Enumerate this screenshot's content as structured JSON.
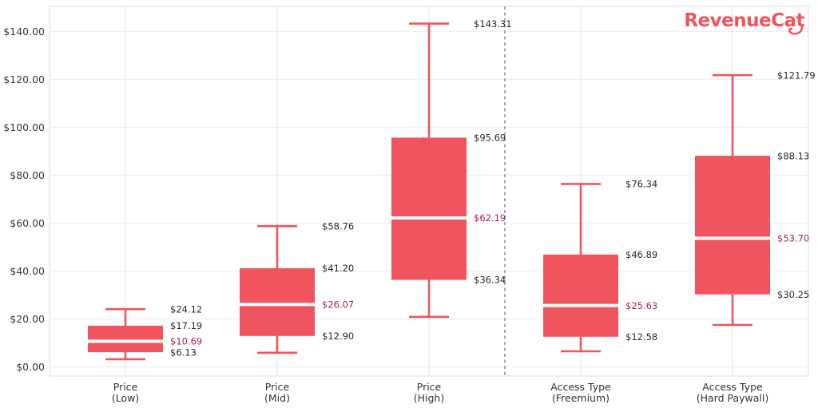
{
  "logo": {
    "text": "RevenueCat",
    "color": "#F2545B"
  },
  "chart_data": {
    "type": "boxplot",
    "title": "",
    "xlabel": "",
    "ylabel": "",
    "ylim": [
      0,
      150
    ],
    "grid": "horizontal",
    "legend": "none",
    "yticks": [
      0,
      20,
      40,
      60,
      80,
      100,
      120,
      140
    ],
    "ytick_labels": [
      "$0.00",
      "$20.00",
      "$40.00",
      "$60.00",
      "$80.00",
      "$100.00",
      "$120.00",
      "$140.00"
    ],
    "divider_between_categories": [
      "Price (High)",
      "Access Type (Freemium)"
    ],
    "boxes": [
      {
        "category_line1": "Price",
        "category_line2": "(Low)",
        "whisker_low": 3.2,
        "q1": 6.13,
        "median": 10.69,
        "q3": 17.19,
        "whisker_high": 24.12,
        "labels": {
          "whisker_high": "$24.12",
          "q3": "$17.19",
          "median": "$10.69",
          "q1": "$6.13"
        }
      },
      {
        "category_line1": "Price",
        "category_line2": "(Mid)",
        "whisker_low": 5.9,
        "q1": 12.9,
        "median": 26.07,
        "q3": 41.2,
        "whisker_high": 58.76,
        "labels": {
          "whisker_high": "$58.76",
          "q3": "$41.20",
          "median": "$26.07",
          "q1": "$12.90"
        }
      },
      {
        "category_line1": "Price",
        "category_line2": "(High)",
        "whisker_low": 20.9,
        "q1": 36.34,
        "median": 62.19,
        "q3": 95.69,
        "whisker_high": 143.31,
        "labels": {
          "whisker_high": "$143.31",
          "q3": "$95.69",
          "median": "$62.19",
          "q1": "$36.34"
        }
      },
      {
        "category_line1": "Access Type",
        "category_line2": "(Freemium)",
        "whisker_low": 6.5,
        "q1": 12.58,
        "median": 25.63,
        "q3": 46.89,
        "whisker_high": 76.34,
        "labels": {
          "whisker_high": "$76.34",
          "q3": "$46.89",
          "median": "$25.63",
          "q1": "$12.58"
        }
      },
      {
        "category_line1": "Access Type",
        "category_line2": "(Hard Paywall)",
        "whisker_low": 17.5,
        "q1": 30.25,
        "median": 53.7,
        "q3": 88.13,
        "whisker_high": 121.79,
        "labels": {
          "whisker_high": "$121.79",
          "q3": "$88.13",
          "median": "$53.70",
          "q1": "$30.25"
        }
      }
    ],
    "colors": {
      "box_fill": "#F0545E",
      "whisker": "#F0545E",
      "median_line": "#FFFFFF",
      "median_label": "#A82448",
      "value_label": "#2A2A2A",
      "tick_label": "#3A3A3A",
      "category_label": "#333333",
      "grid_horizontal": "#EFEFEF",
      "grid_vertical": "#E3E3E3",
      "plot_border": "#DDDDDD",
      "divider": "#A9A9A9"
    }
  }
}
